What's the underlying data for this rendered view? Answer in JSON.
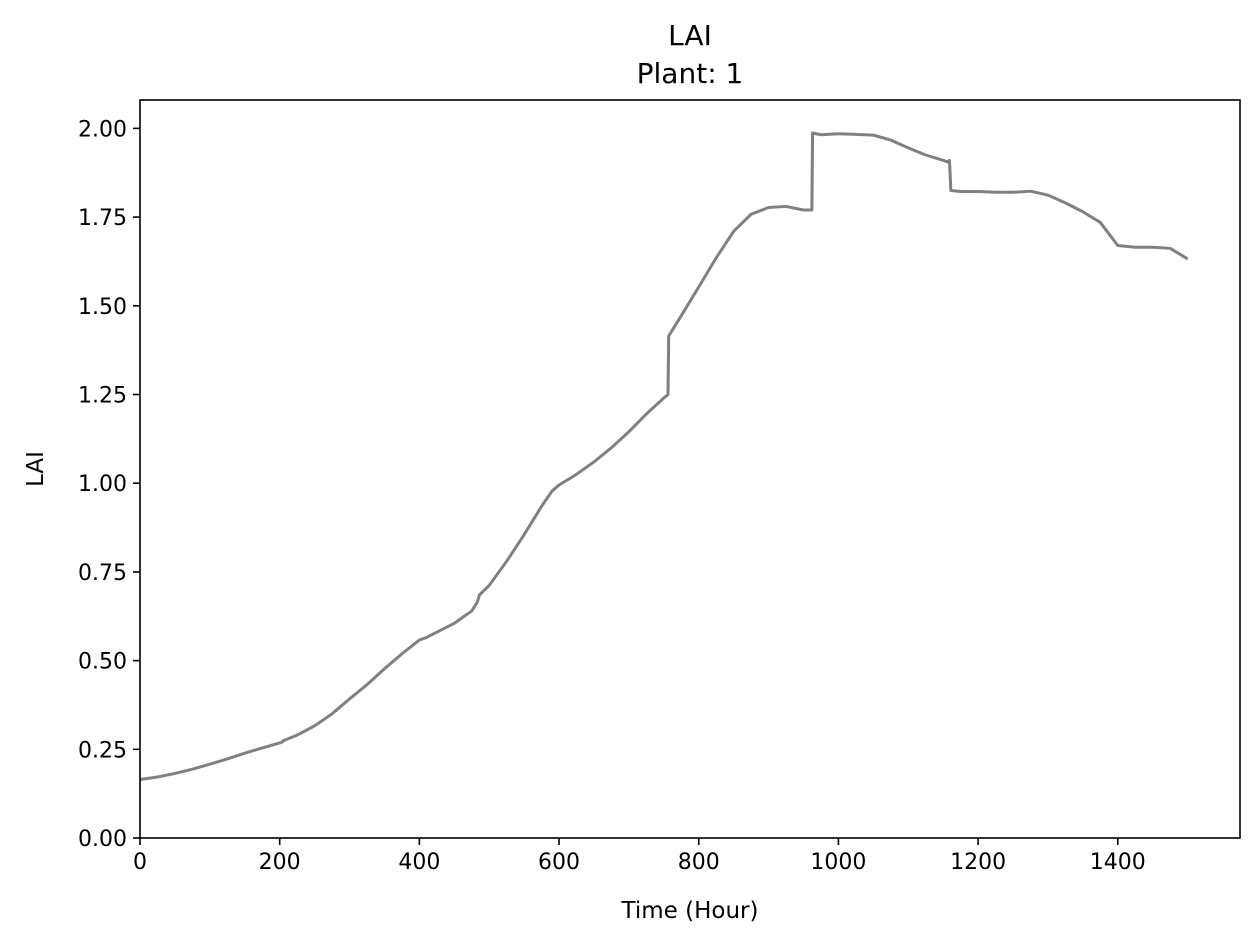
{
  "chart_data": {
    "type": "line",
    "title": "LAI",
    "subtitle": "Plant: 1",
    "xlabel": "Time (Hour)",
    "ylabel": "LAI",
    "xlim": [
      0,
      1575
    ],
    "ylim": [
      0,
      2.08
    ],
    "xticks": [
      0,
      200,
      400,
      600,
      800,
      1000,
      1200,
      1400
    ],
    "xtick_labels": [
      "0",
      "200",
      "400",
      "600",
      "800",
      "1000",
      "1200",
      "1400"
    ],
    "yticks": [
      0,
      0.25,
      0.5,
      0.75,
      1.0,
      1.25,
      1.5,
      1.75,
      2.0
    ],
    "ytick_labels": [
      "0.00",
      "0.25",
      "0.50",
      "0.75",
      "1.00",
      "1.25",
      "1.50",
      "1.75",
      "2.00"
    ],
    "grid": false,
    "colors": {
      "line": "#808080",
      "axes": "#000000",
      "background": "#ffffff"
    },
    "series": [
      {
        "x": [
          0,
          25,
          50,
          75,
          100,
          125,
          150,
          175,
          200,
          203,
          206,
          225,
          250,
          275,
          300,
          325,
          350,
          375,
          400,
          410,
          425,
          450,
          475,
          483,
          486,
          500,
          525,
          550,
          575,
          590,
          600,
          625,
          650,
          675,
          700,
          725,
          750,
          756,
          757,
          775,
          800,
          825,
          850,
          875,
          900,
          925,
          950,
          962,
          963,
          975,
          1000,
          1025,
          1050,
          1075,
          1100,
          1125,
          1150,
          1157,
          1159,
          1161,
          1175,
          1200,
          1225,
          1250,
          1275,
          1300,
          1325,
          1350,
          1375,
          1400,
          1425,
          1450,
          1475,
          1500
        ],
        "y": [
          0.165,
          0.172,
          0.182,
          0.194,
          0.208,
          0.223,
          0.239,
          0.254,
          0.268,
          0.27,
          0.275,
          0.29,
          0.316,
          0.35,
          0.392,
          0.432,
          0.477,
          0.519,
          0.558,
          0.565,
          0.58,
          0.605,
          0.64,
          0.665,
          0.685,
          0.712,
          0.78,
          0.855,
          0.935,
          0.978,
          0.995,
          1.025,
          1.06,
          1.1,
          1.145,
          1.195,
          1.24,
          1.25,
          1.415,
          1.472,
          1.553,
          1.635,
          1.71,
          1.758,
          1.777,
          1.78,
          1.77,
          1.77,
          1.987,
          1.982,
          1.985,
          1.983,
          1.981,
          1.967,
          1.945,
          1.925,
          1.91,
          1.905,
          1.91,
          1.825,
          1.822,
          1.822,
          1.82,
          1.82,
          1.823,
          1.812,
          1.79,
          1.765,
          1.735,
          1.67,
          1.665,
          1.665,
          1.662,
          1.632
        ]
      }
    ]
  }
}
